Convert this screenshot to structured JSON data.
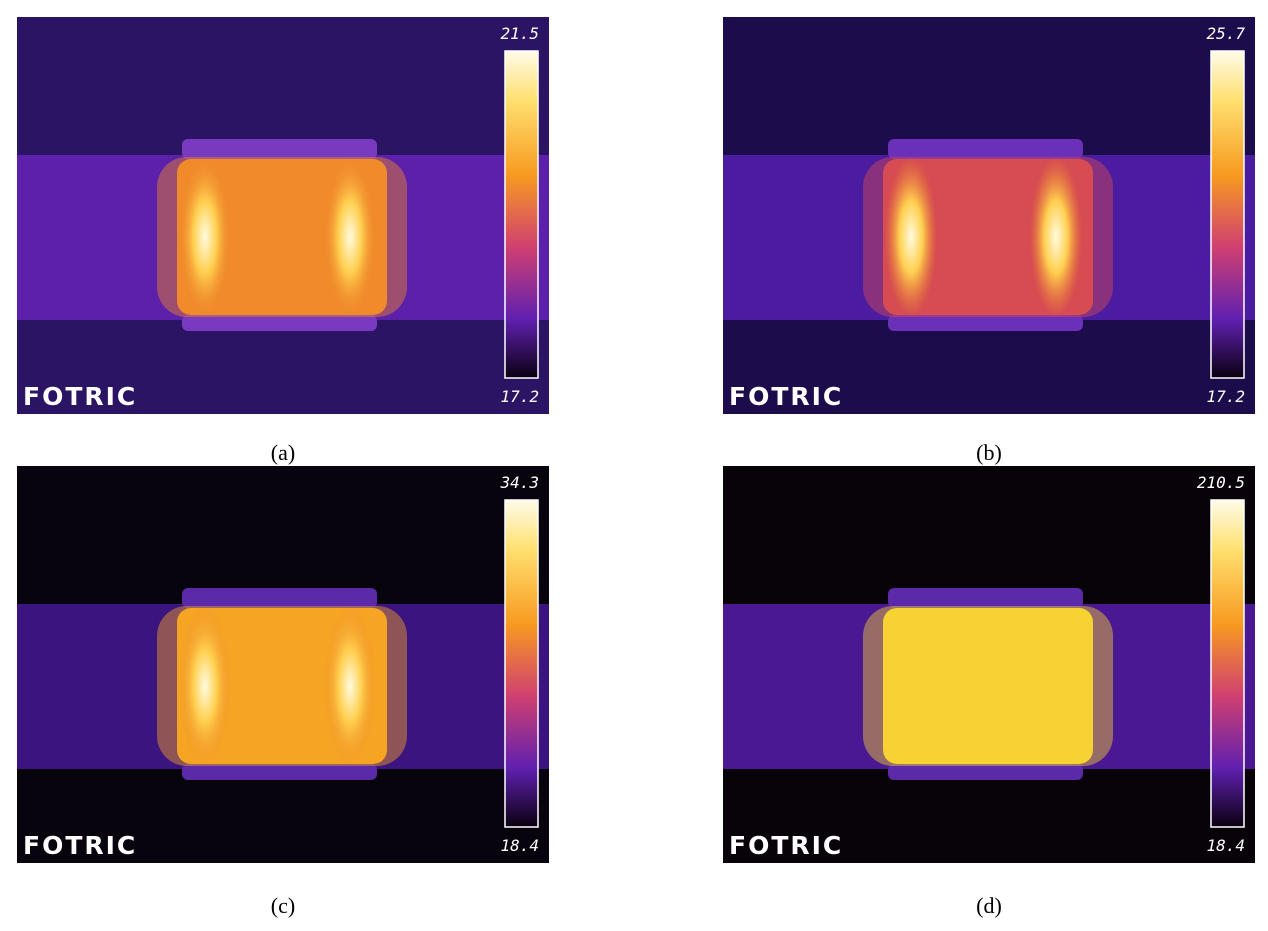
{
  "panels": [
    {
      "caption": "(a)",
      "brand": "FOTRIC",
      "scale_max": 21.5,
      "scale_min": 17.2
    },
    {
      "caption": "(b)",
      "brand": "FOTRIC",
      "scale_max": 25.7,
      "scale_min": 17.2
    },
    {
      "caption": "(c)",
      "brand": "FOTRIC",
      "scale_max": 34.3,
      "scale_min": 18.4
    },
    {
      "caption": "(d)",
      "brand": "FOTRIC",
      "scale_max": 210.5,
      "scale_min": 18.4
    }
  ]
}
